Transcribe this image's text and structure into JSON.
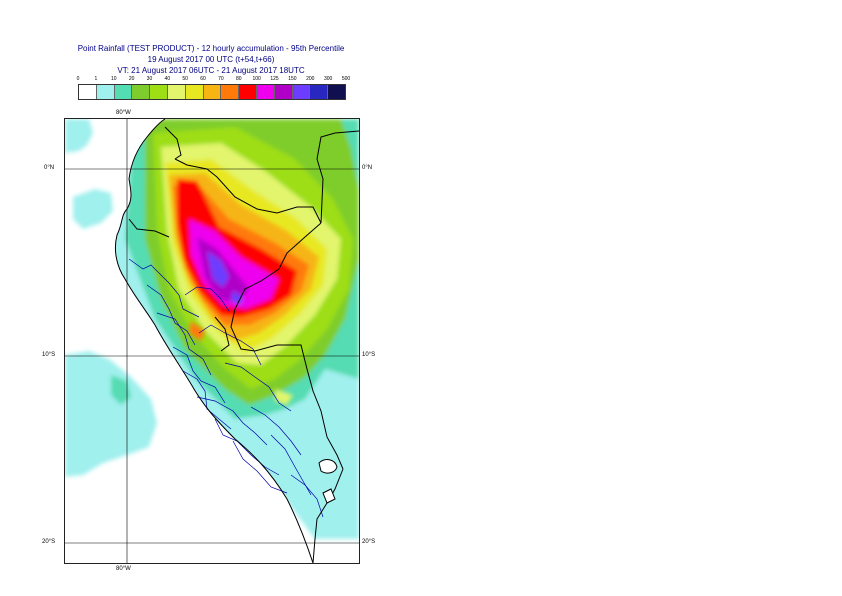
{
  "title": {
    "line1": "Point Rainfall (TEST PRODUCT) - 12 hourly accumulation - 95th Percentile",
    "line2": "19 August 2017 00 UTC (t+54,t+66)",
    "line3": "VT: 21 August 2017 06UTC - 21 August 2017 18UTC"
  },
  "legend": {
    "ticks": [
      "0",
      "1",
      "10",
      "20",
      "30",
      "40",
      "50",
      "60",
      "70",
      "80",
      "100",
      "125",
      "150",
      "200",
      "300",
      "500"
    ],
    "colors": [
      "#ffffff",
      "#a0f0ee",
      "#54dcb2",
      "#7fcd2c",
      "#9ede14",
      "#e2f56c",
      "#e8e822",
      "#f6b512",
      "#ff7a08",
      "#ff0000",
      "#ee00ee",
      "#b000c8",
      "#6c3cff",
      "#2828c0",
      "#101050"
    ]
  },
  "map": {
    "lon_labels": {
      "top": "80°W",
      "bottom": "80°W"
    },
    "lat_labels": {
      "left": [
        "0°N",
        "10°S",
        "20°S"
      ],
      "right": [
        "0°N",
        "10°S",
        "20°S"
      ]
    },
    "colors": {
      "grid": "#000000",
      "country_border": "#000000",
      "region_border": "#0000aa",
      "frame": "#222222"
    }
  }
}
